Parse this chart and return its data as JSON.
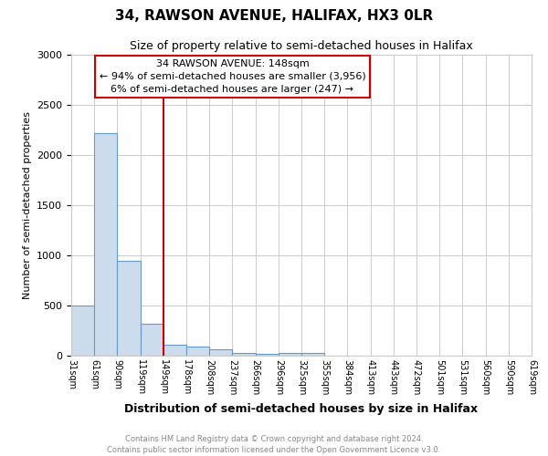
{
  "title": "34, RAWSON AVENUE, HALIFAX, HX3 0LR",
  "subtitle": "Size of property relative to semi-detached houses in Halifax",
  "xlabel": "Distribution of semi-detached houses by size in Halifax",
  "ylabel": "Number of semi-detached properties",
  "bar_values": [
    500,
    2220,
    950,
    320,
    110,
    95,
    60,
    30,
    18,
    25,
    30,
    0,
    0,
    0,
    0,
    0,
    0,
    0,
    0,
    0
  ],
  "categories": [
    "31sqm",
    "61sqm",
    "90sqm",
    "119sqm",
    "149sqm",
    "178sqm",
    "208sqm",
    "237sqm",
    "266sqm",
    "296sqm",
    "325sqm",
    "355sqm",
    "384sqm",
    "413sqm",
    "443sqm",
    "472sqm",
    "501sqm",
    "531sqm",
    "560sqm",
    "590sqm",
    "619sqm"
  ],
  "bar_color": "#ccdcec",
  "bar_edge_color": "#6699cc",
  "ylim": [
    0,
    3000
  ],
  "yticks": [
    0,
    500,
    1000,
    1500,
    2000,
    2500,
    3000
  ],
  "property_line_color": "#cc0000",
  "annotation_title": "34 RAWSON AVENUE: 148sqm",
  "annotation_line1": "← 94% of semi-detached houses are smaller (3,956)",
  "annotation_line2": "6% of semi-detached houses are larger (247) →",
  "annotation_box_facecolor": "#ffffff",
  "annotation_box_edgecolor": "#cc0000",
  "footer_line1": "Contains HM Land Registry data © Crown copyright and database right 2024.",
  "footer_line2": "Contains public sector information licensed under the Open Government Licence v3.0.",
  "background_color": "#ffffff",
  "grid_color": "#cccccc"
}
